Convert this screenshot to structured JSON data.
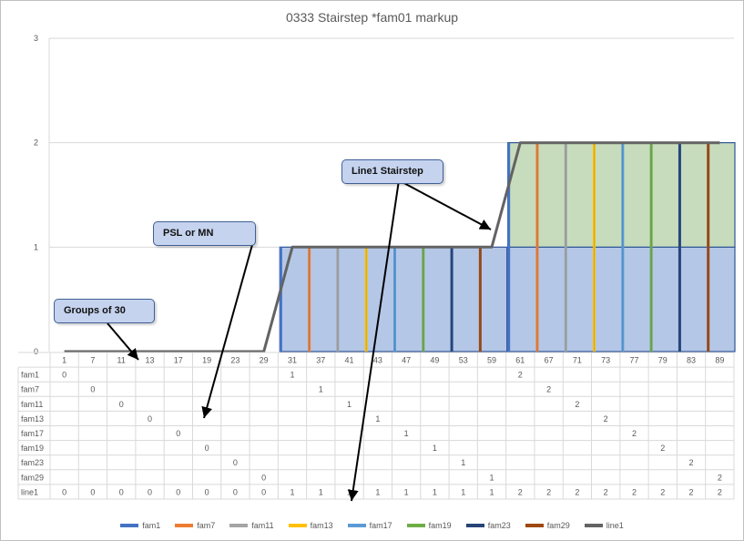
{
  "chart_data": {
    "type": "bar",
    "title": "0333 Stairstep *fam01  markup",
    "ylim": [
      0,
      3
    ],
    "yticks": [
      0,
      1,
      2,
      3
    ],
    "grid": true,
    "legend_position": "bottom",
    "categories": [
      "1",
      "7",
      "11",
      "13",
      "17",
      "19",
      "23",
      "29",
      "31",
      "37",
      "41",
      "43",
      "47",
      "49",
      "53",
      "59",
      "61",
      "67",
      "71",
      "73",
      "77",
      "79",
      "83",
      "89"
    ],
    "series": [
      {
        "name": "fam1",
        "color": "#4472c4",
        "values": [
          0,
          null,
          null,
          null,
          null,
          null,
          null,
          null,
          1,
          null,
          null,
          null,
          null,
          null,
          null,
          null,
          2,
          null,
          null,
          null,
          null,
          null,
          null,
          null
        ]
      },
      {
        "name": "fam7",
        "color": "#ed7d31",
        "values": [
          null,
          0,
          null,
          null,
          null,
          null,
          null,
          null,
          null,
          1,
          null,
          null,
          null,
          null,
          null,
          null,
          null,
          2,
          null,
          null,
          null,
          null,
          null,
          null
        ]
      },
      {
        "name": "fam11",
        "color": "#a5a5a5",
        "values": [
          null,
          null,
          0,
          null,
          null,
          null,
          null,
          null,
          null,
          null,
          1,
          null,
          null,
          null,
          null,
          null,
          null,
          null,
          2,
          null,
          null,
          null,
          null,
          null
        ]
      },
      {
        "name": "fam13",
        "color": "#ffc000",
        "values": [
          null,
          null,
          null,
          0,
          null,
          null,
          null,
          null,
          null,
          null,
          null,
          1,
          null,
          null,
          null,
          null,
          null,
          null,
          null,
          2,
          null,
          null,
          null,
          null
        ]
      },
      {
        "name": "fam17",
        "color": "#5b9bd5",
        "values": [
          null,
          null,
          null,
          null,
          0,
          null,
          null,
          null,
          null,
          null,
          null,
          null,
          1,
          null,
          null,
          null,
          null,
          null,
          null,
          null,
          2,
          null,
          null,
          null
        ]
      },
      {
        "name": "fam19",
        "color": "#70ad47",
        "values": [
          null,
          null,
          null,
          null,
          null,
          0,
          null,
          null,
          null,
          null,
          null,
          null,
          null,
          1,
          null,
          null,
          null,
          null,
          null,
          null,
          null,
          2,
          null,
          null
        ]
      },
      {
        "name": "fam23",
        "color": "#264478",
        "values": [
          null,
          null,
          null,
          null,
          null,
          null,
          0,
          null,
          null,
          null,
          null,
          null,
          null,
          null,
          1,
          null,
          null,
          null,
          null,
          null,
          null,
          null,
          2,
          null
        ]
      },
      {
        "name": "fam29",
        "color": "#9e480e",
        "values": [
          null,
          null,
          null,
          null,
          null,
          null,
          null,
          0,
          null,
          null,
          null,
          null,
          null,
          null,
          null,
          1,
          null,
          null,
          null,
          null,
          null,
          null,
          null,
          2
        ]
      },
      {
        "name": "line1",
        "color": "#636363",
        "type": "line",
        "values": [
          0,
          0,
          0,
          0,
          0,
          0,
          0,
          0,
          1,
          1,
          1,
          1,
          1,
          1,
          1,
          1,
          2,
          2,
          2,
          2,
          2,
          2,
          2,
          2
        ]
      }
    ],
    "annotations": [
      "Groups  of 30",
      "PSL or MN",
      "Line1 Stairstep"
    ]
  },
  "colors": {
    "band_fill": "#b4c7e7",
    "band_fill_upper": "#c7dcbc",
    "band_border": "#2f5597",
    "grid": "#d9d9d9",
    "text": "#595959",
    "line": "#636363"
  }
}
